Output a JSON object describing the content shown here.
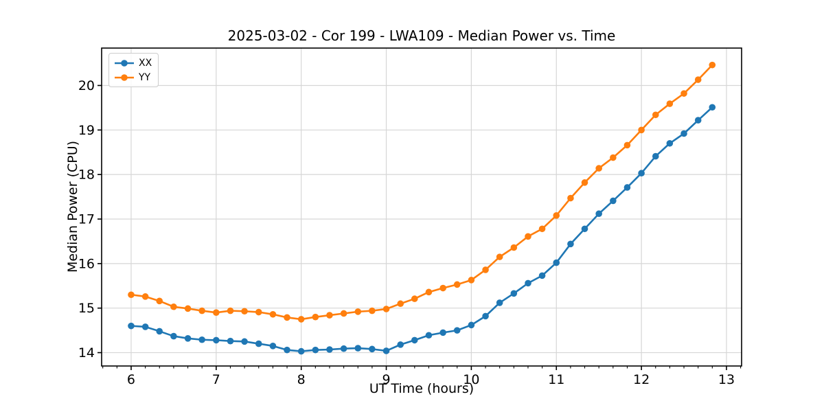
{
  "chart_data": {
    "type": "line",
    "title": "2025-03-02 - Cor 199 - LWA109 - Median Power vs. Time",
    "xlabel": "UT Time (hours)",
    "ylabel": "Median Power (CPU)",
    "xlim": [
      5.653,
      13.178
    ],
    "ylim": [
      13.7,
      20.84
    ],
    "xticks": [
      6,
      7,
      8,
      9,
      10,
      11,
      12,
      13
    ],
    "yticks": [
      14,
      15,
      16,
      17,
      18,
      19,
      20
    ],
    "x_minor_tick_step": 0.16667,
    "grid": true,
    "grid_color": "#d6d6d6",
    "legend_position": "upper left",
    "marker": "circle",
    "background": "#ffffff",
    "x": [
      6.0,
      6.167,
      6.333,
      6.5,
      6.667,
      6.833,
      7.0,
      7.167,
      7.333,
      7.5,
      7.667,
      7.833,
      8.0,
      8.167,
      8.333,
      8.5,
      8.667,
      8.833,
      9.0,
      9.167,
      9.333,
      9.5,
      9.667,
      9.833,
      10.0,
      10.167,
      10.333,
      10.5,
      10.667,
      10.833,
      11.0,
      11.167,
      11.333,
      11.5,
      11.667,
      11.833,
      12.0,
      12.167,
      12.333,
      12.5,
      12.667,
      12.833
    ],
    "series": [
      {
        "name": "XX",
        "color": "#1f77b4",
        "values": [
          14.6,
          14.58,
          14.48,
          14.37,
          14.32,
          14.29,
          14.28,
          14.26,
          14.25,
          14.2,
          14.15,
          14.06,
          14.03,
          14.06,
          14.07,
          14.09,
          14.1,
          14.08,
          14.04,
          14.18,
          14.28,
          14.39,
          14.45,
          14.5,
          14.62,
          14.82,
          15.12,
          15.33,
          15.56,
          15.73,
          16.02,
          16.44,
          16.78,
          17.12,
          17.41,
          17.71,
          18.03,
          18.41,
          18.7,
          18.92,
          19.22,
          19.51
        ]
      },
      {
        "name": "YY",
        "color": "#ff7f0e",
        "values": [
          15.3,
          15.26,
          15.16,
          15.03,
          14.99,
          14.94,
          14.9,
          14.94,
          14.93,
          14.91,
          14.86,
          14.79,
          14.75,
          14.8,
          14.84,
          14.88,
          14.92,
          14.94,
          14.98,
          15.1,
          15.21,
          15.36,
          15.45,
          15.53,
          15.63,
          15.86,
          16.15,
          16.36,
          16.61,
          16.78,
          17.08,
          17.47,
          17.82,
          18.14,
          18.38,
          18.66,
          19.0,
          19.34,
          19.59,
          19.82,
          20.13,
          20.46
        ]
      }
    ]
  }
}
